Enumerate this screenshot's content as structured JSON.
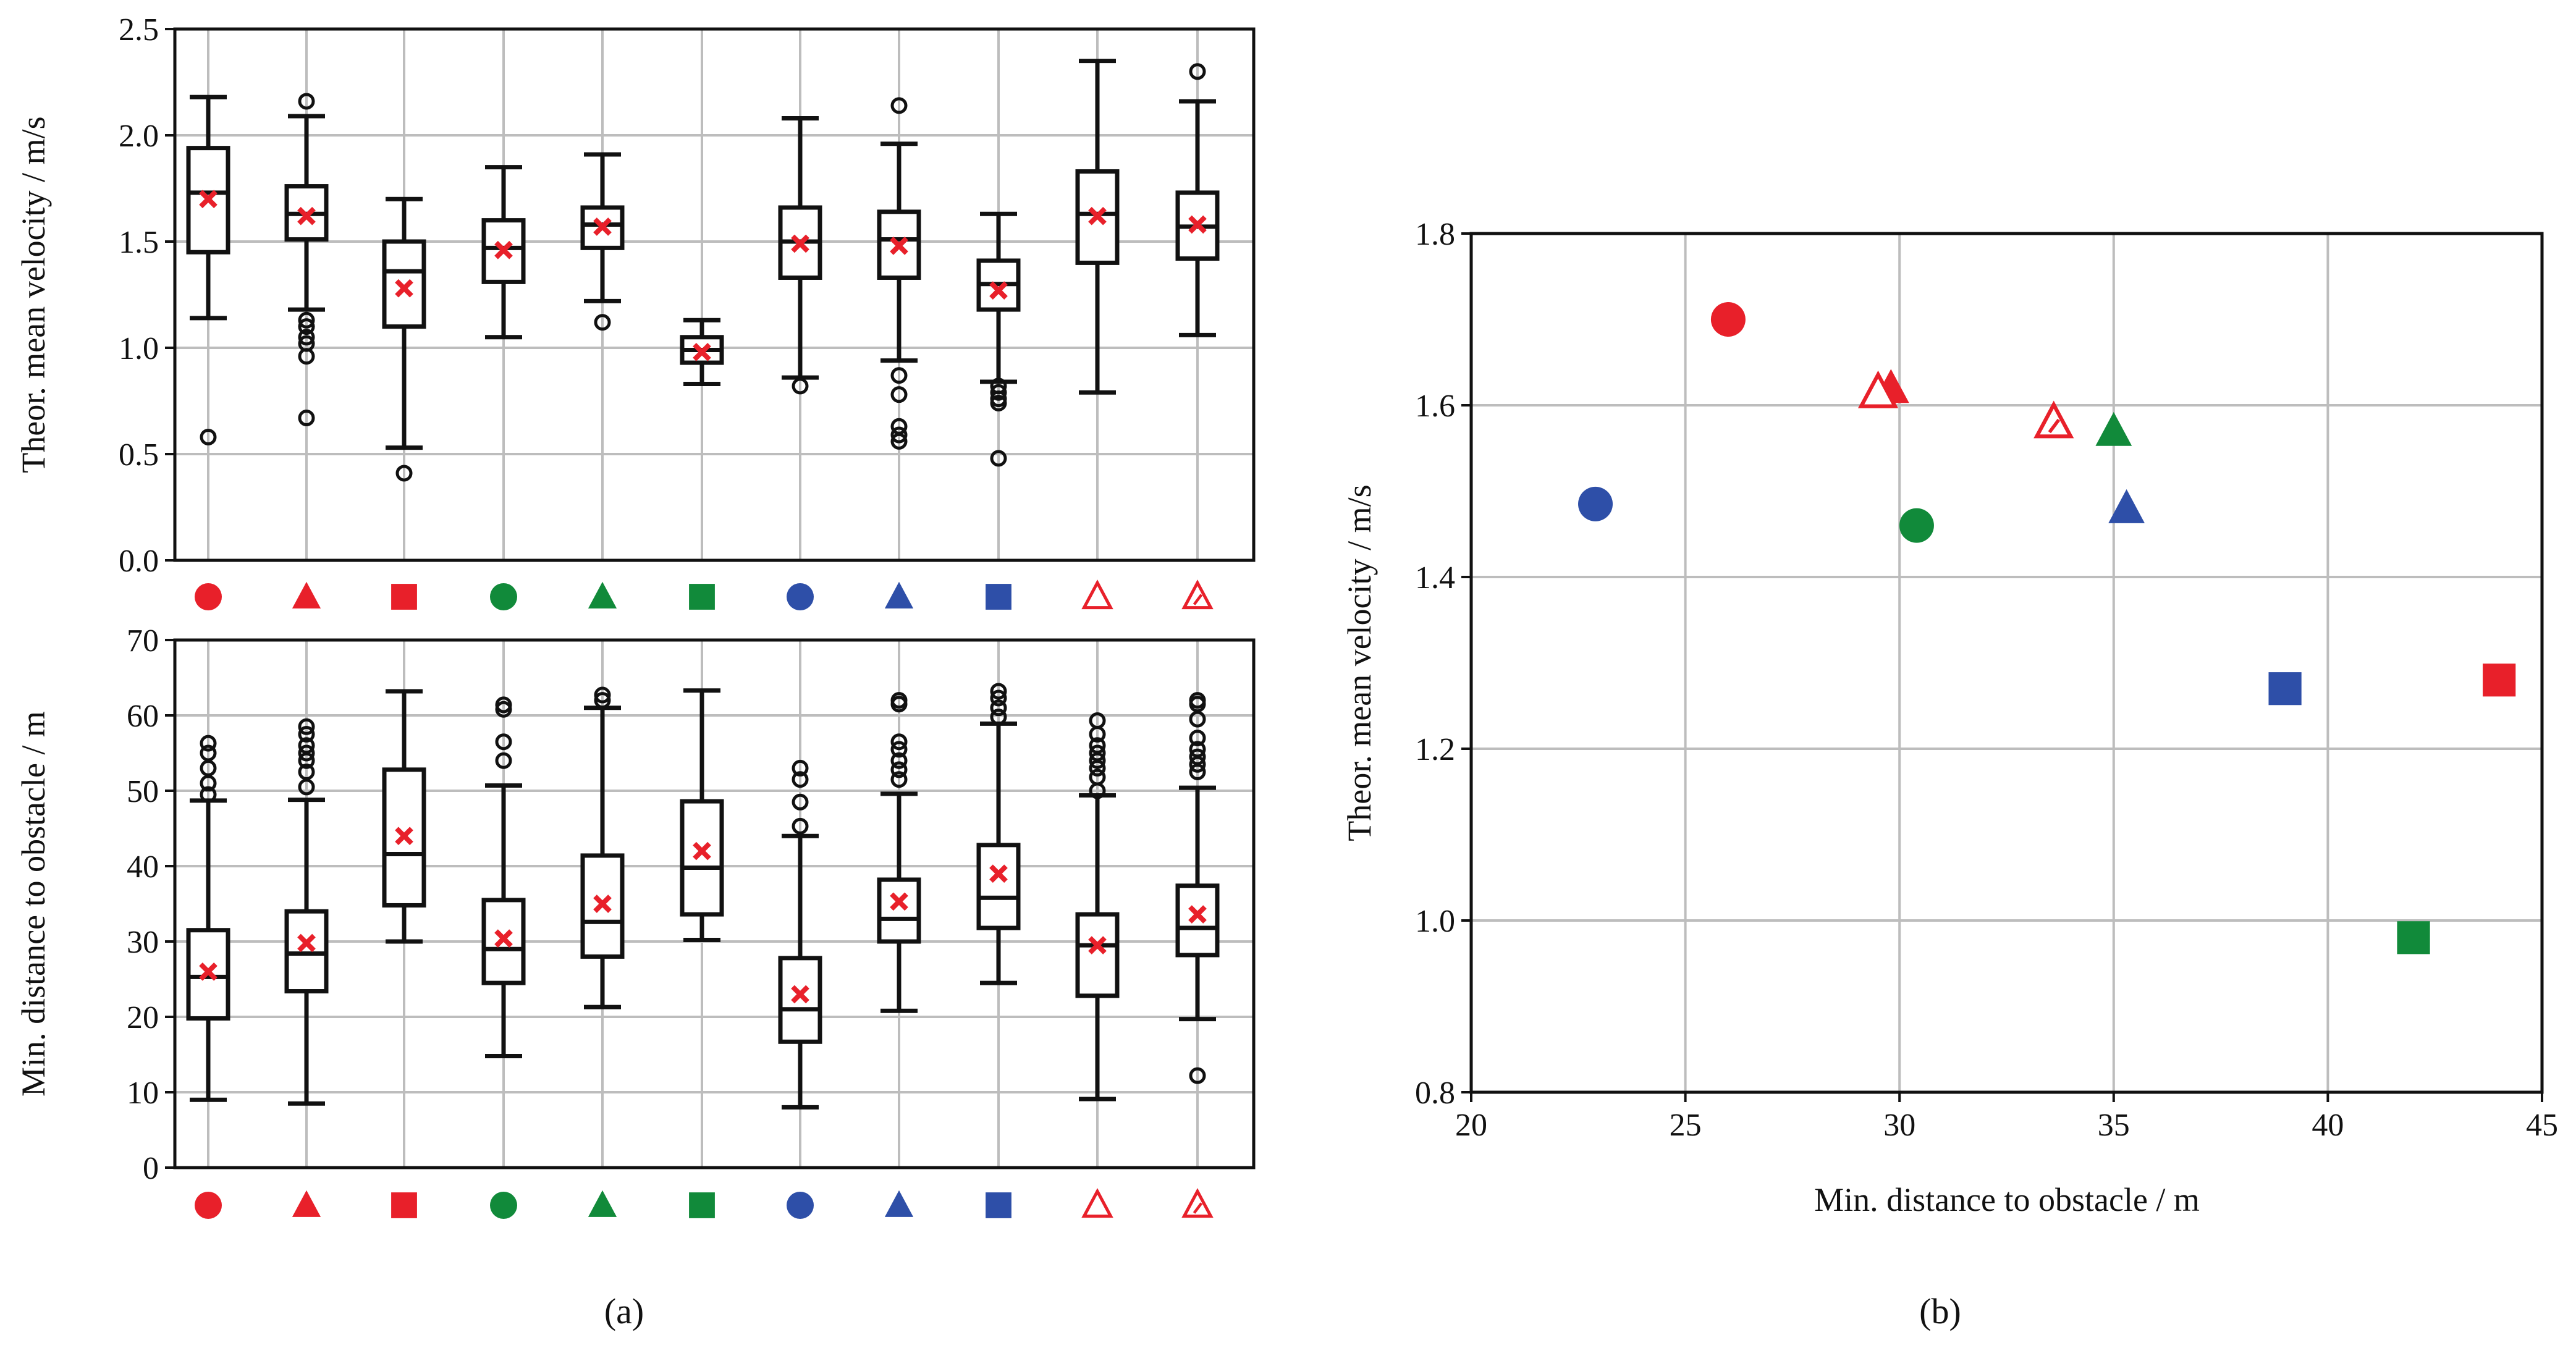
{
  "colors": {
    "red": "#e8202a",
    "green": "#118a3a",
    "blue": "#2e4fa8",
    "mean": "#e8202a",
    "grid": "#bdbdbd",
    "ink": "#111111"
  },
  "categories": [
    {
      "color": "red",
      "shape": "circle"
    },
    {
      "color": "red",
      "shape": "triangle"
    },
    {
      "color": "red",
      "shape": "square"
    },
    {
      "color": "green",
      "shape": "circle"
    },
    {
      "color": "green",
      "shape": "triangle"
    },
    {
      "color": "green",
      "shape": "square"
    },
    {
      "color": "blue",
      "shape": "circle"
    },
    {
      "color": "blue",
      "shape": "triangle"
    },
    {
      "color": "blue",
      "shape": "square"
    },
    {
      "color": "red",
      "shape": "triangle-open"
    },
    {
      "color": "red",
      "shape": "triangle-hatched"
    }
  ],
  "chart_data": [
    {
      "type": "box",
      "panel": "a-top",
      "ylabel": "Theor. mean velocity / m/s",
      "ylim": [
        0.0,
        2.5
      ],
      "yticks": [
        "0.0",
        "0.5",
        "1.0",
        "1.5",
        "2.0",
        "2.5"
      ],
      "boxes": [
        {
          "q1": 1.45,
          "median": 1.73,
          "q3": 1.94,
          "wlow": 1.14,
          "whigh": 2.18,
          "mean": 1.7,
          "outliers": [
            0.58
          ]
        },
        {
          "q1": 1.51,
          "median": 1.63,
          "q3": 1.76,
          "wlow": 1.18,
          "whigh": 2.09,
          "mean": 1.62,
          "outliers": [
            2.16,
            1.13,
            1.1,
            1.05,
            1.02,
            0.96,
            0.67
          ]
        },
        {
          "q1": 1.1,
          "median": 1.36,
          "q3": 1.5,
          "wlow": 0.53,
          "whigh": 1.7,
          "mean": 1.28,
          "outliers": [
            0.41
          ]
        },
        {
          "q1": 1.31,
          "median": 1.47,
          "q3": 1.6,
          "wlow": 1.05,
          "whigh": 1.85,
          "mean": 1.46,
          "outliers": []
        },
        {
          "q1": 1.47,
          "median": 1.58,
          "q3": 1.66,
          "wlow": 1.22,
          "whigh": 1.91,
          "mean": 1.57,
          "outliers": [
            1.12
          ]
        },
        {
          "q1": 0.93,
          "median": 0.99,
          "q3": 1.05,
          "wlow": 0.83,
          "whigh": 1.13,
          "mean": 0.98,
          "outliers": []
        },
        {
          "q1": 1.33,
          "median": 1.5,
          "q3": 1.66,
          "wlow": 0.86,
          "whigh": 2.08,
          "mean": 1.49,
          "outliers": [
            0.82
          ]
        },
        {
          "q1": 1.33,
          "median": 1.51,
          "q3": 1.64,
          "wlow": 0.94,
          "whigh": 1.96,
          "mean": 1.48,
          "outliers": [
            2.14,
            0.87,
            0.78,
            0.63,
            0.59,
            0.56
          ]
        },
        {
          "q1": 1.18,
          "median": 1.3,
          "q3": 1.41,
          "wlow": 0.84,
          "whigh": 1.63,
          "mean": 1.27,
          "outliers": [
            0.82,
            0.79,
            0.76,
            0.74,
            0.48
          ]
        },
        {
          "q1": 1.4,
          "median": 1.63,
          "q3": 1.83,
          "wlow": 0.79,
          "whigh": 2.35,
          "mean": 1.62,
          "outliers": []
        },
        {
          "q1": 1.42,
          "median": 1.57,
          "q3": 1.73,
          "wlow": 1.06,
          "whigh": 2.16,
          "mean": 1.58,
          "outliers": [
            2.3
          ]
        }
      ]
    },
    {
      "type": "box",
      "panel": "a-bottom",
      "ylabel": "Min. distance to obstacle / m",
      "ylim": [
        0,
        70
      ],
      "yticks": [
        "0",
        "10",
        "20",
        "30",
        "40",
        "50",
        "60",
        "70"
      ],
      "boxes": [
        {
          "q1": 19.8,
          "median": 25.3,
          "q3": 31.5,
          "wlow": 9.0,
          "whigh": 48.7,
          "mean": 26.0,
          "outliers": [
            49.5,
            51.0,
            53.0,
            55.0,
            56.3
          ]
        },
        {
          "q1": 23.4,
          "median": 28.4,
          "q3": 34.0,
          "wlow": 8.5,
          "whigh": 48.8,
          "mean": 29.8,
          "outliers": [
            50.5,
            52.5,
            54.0,
            55.0,
            56.0,
            57.5,
            58.5
          ]
        },
        {
          "q1": 34.8,
          "median": 41.6,
          "q3": 52.8,
          "wlow": 30.0,
          "whigh": 63.2,
          "mean": 44.0,
          "outliers": []
        },
        {
          "q1": 24.5,
          "median": 29.0,
          "q3": 35.5,
          "wlow": 14.8,
          "whigh": 50.7,
          "mean": 30.4,
          "outliers": [
            54.0,
            56.5,
            60.8,
            61.4
          ]
        },
        {
          "q1": 28.0,
          "median": 32.6,
          "q3": 41.4,
          "wlow": 21.3,
          "whigh": 61.0,
          "mean": 35.0,
          "outliers": [
            62.0,
            62.7
          ]
        },
        {
          "q1": 33.6,
          "median": 39.8,
          "q3": 48.6,
          "wlow": 30.2,
          "whigh": 63.3,
          "mean": 42.0,
          "outliers": []
        },
        {
          "q1": 16.7,
          "median": 21.0,
          "q3": 27.8,
          "wlow": 8.0,
          "whigh": 44.0,
          "mean": 23.0,
          "outliers": [
            45.3,
            48.5,
            51.5,
            53.0
          ]
        },
        {
          "q1": 30.0,
          "median": 33.0,
          "q3": 38.2,
          "wlow": 20.8,
          "whigh": 49.6,
          "mean": 35.3,
          "outliers": [
            51.5,
            52.8,
            54.0,
            55.5,
            56.5,
            61.5,
            62.0
          ]
        },
        {
          "q1": 31.8,
          "median": 35.8,
          "q3": 42.8,
          "wlow": 24.5,
          "whigh": 58.9,
          "mean": 39.0,
          "outliers": [
            59.8,
            61.0,
            62.3,
            63.2
          ]
        },
        {
          "q1": 22.8,
          "median": 29.5,
          "q3": 33.6,
          "wlow": 9.1,
          "whigh": 49.4,
          "mean": 29.5,
          "outliers": [
            50.0,
            51.8,
            53.0,
            54.0,
            55.0,
            56.0,
            57.5,
            59.3
          ]
        },
        {
          "q1": 28.2,
          "median": 31.8,
          "q3": 37.4,
          "wlow": 19.7,
          "whigh": 50.4,
          "mean": 33.6,
          "outliers": [
            12.2,
            52.5,
            53.5,
            54.5,
            55.5,
            57.0,
            59.5,
            61.5,
            62.0
          ]
        }
      ]
    },
    {
      "type": "scatter",
      "panel": "b",
      "xlabel": "Min. distance to obstacle / m",
      "ylabel": "Theor. mean velocity / m/s",
      "xlim": [
        20,
        45
      ],
      "ylim": [
        0.8,
        1.8
      ],
      "xticks": [
        "20",
        "25",
        "30",
        "35",
        "40",
        "45"
      ],
      "yticks": [
        "0.8",
        "1.0",
        "1.2",
        "1.4",
        "1.6",
        "1.8"
      ],
      "points": [
        {
          "x": 26.0,
          "y": 1.7
        },
        {
          "x": 29.8,
          "y": 1.62
        },
        {
          "x": 44.0,
          "y": 1.28
        },
        {
          "x": 30.4,
          "y": 1.46
        },
        {
          "x": 35.0,
          "y": 1.57
        },
        {
          "x": 42.0,
          "y": 0.98
        },
        {
          "x": 22.9,
          "y": 1.485
        },
        {
          "x": 35.3,
          "y": 1.48
        },
        {
          "x": 39.0,
          "y": 1.27
        },
        {
          "x": 29.5,
          "y": 1.615
        },
        {
          "x": 33.6,
          "y": 1.58
        }
      ]
    }
  ],
  "panel_labels": {
    "a": "(a)",
    "b": "(b)"
  }
}
